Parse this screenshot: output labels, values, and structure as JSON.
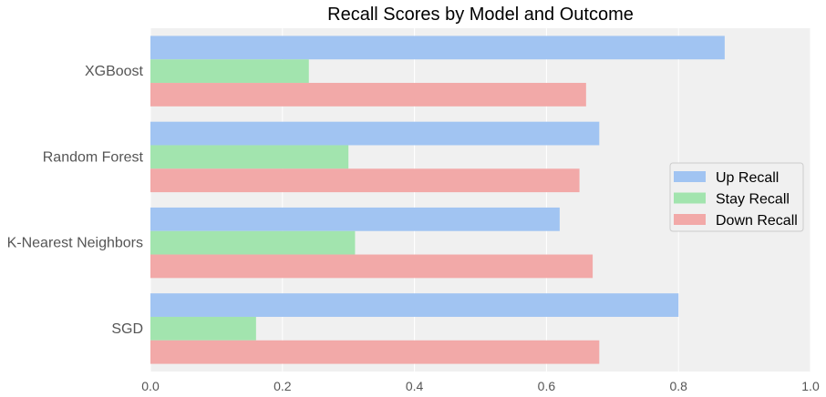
{
  "chart_data": {
    "type": "bar",
    "orientation": "horizontal",
    "title": "Recall Scores by Model and Outcome",
    "xlabel": "",
    "ylabel": "",
    "xlim": [
      0.0,
      1.0
    ],
    "xticks": [
      "0.0",
      "0.2",
      "0.4",
      "0.6",
      "0.8",
      "1.0"
    ],
    "grid": true,
    "legend_position": "right",
    "categories": [
      "XGBoost",
      "Random Forest",
      "K-Nearest Neighbors",
      "SGD"
    ],
    "series": [
      {
        "name": "Up Recall",
        "color": "#a1c4f2",
        "values": [
          0.87,
          0.68,
          0.62,
          0.8
        ]
      },
      {
        "name": "Stay Recall",
        "color": "#a2e4ae",
        "values": [
          0.24,
          0.3,
          0.31,
          0.16
        ]
      },
      {
        "name": "Down Recall",
        "color": "#f2a9a8",
        "values": [
          0.66,
          0.65,
          0.67,
          0.68
        ]
      }
    ]
  }
}
